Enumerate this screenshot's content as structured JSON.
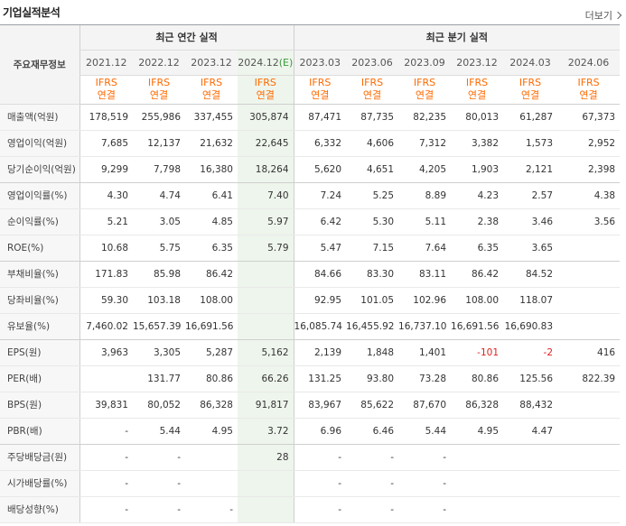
{
  "header": {
    "title": "기업실적분석",
    "more_label": "더보기"
  },
  "table": {
    "row_header_label": "주요재무정보",
    "group_annual": "최근 연간 실적",
    "group_quarterly": "최근 분기 실적",
    "periods": [
      "2021.12",
      "2022.12",
      "2023.12",
      "2024.12",
      "2023.03",
      "2023.06",
      "2023.09",
      "2023.12",
      "2024.03",
      "2024.06"
    ],
    "estimate_mark": "(E)",
    "standard_top": "IFRS",
    "standard_bottom": "연결",
    "rows": [
      {
        "label": "매출액(억원)",
        "values": [
          "178,519",
          "255,986",
          "337,455",
          "305,874",
          "87,471",
          "87,735",
          "82,235",
          "80,013",
          "61,287",
          "67,373"
        ]
      },
      {
        "label": "영업이익(억원)",
        "values": [
          "7,685",
          "12,137",
          "21,632",
          "22,645",
          "6,332",
          "4,606",
          "7,312",
          "3,382",
          "1,573",
          "2,952"
        ]
      },
      {
        "label": "당기순이익(억원)",
        "values": [
          "9,299",
          "7,798",
          "16,380",
          "18,264",
          "5,620",
          "4,651",
          "4,205",
          "1,903",
          "2,121",
          "2,398"
        ]
      },
      {
        "label": "영업이익률(%)",
        "values": [
          "4.30",
          "4.74",
          "6.41",
          "7.40",
          "7.24",
          "5.25",
          "8.89",
          "4.23",
          "2.57",
          "4.38"
        ]
      },
      {
        "label": "순이익률(%)",
        "values": [
          "5.21",
          "3.05",
          "4.85",
          "5.97",
          "6.42",
          "5.30",
          "5.11",
          "2.38",
          "3.46",
          "3.56"
        ]
      },
      {
        "label": "ROE(%)",
        "values": [
          "10.68",
          "5.75",
          "6.35",
          "5.79",
          "5.47",
          "7.15",
          "7.64",
          "6.35",
          "3.65",
          ""
        ]
      },
      {
        "label": "부채비율(%)",
        "values": [
          "171.83",
          "85.98",
          "86.42",
          "",
          "84.66",
          "83.30",
          "83.11",
          "86.42",
          "84.52",
          ""
        ]
      },
      {
        "label": "당좌비율(%)",
        "values": [
          "59.30",
          "103.18",
          "108.00",
          "",
          "92.95",
          "101.05",
          "102.96",
          "108.00",
          "118.07",
          ""
        ]
      },
      {
        "label": "유보율(%)",
        "values": [
          "7,460.02",
          "15,657.39",
          "16,691.56",
          "",
          "16,085.74",
          "16,455.92",
          "16,737.10",
          "16,691.56",
          "16,690.83",
          ""
        ]
      },
      {
        "label": "EPS(원)",
        "values": [
          "3,963",
          "3,305",
          "5,287",
          "5,162",
          "2,139",
          "1,848",
          "1,401",
          "-101",
          "-2",
          "416"
        ]
      },
      {
        "label": "PER(배)",
        "values": [
          "",
          "131.77",
          "80.86",
          "66.26",
          "131.25",
          "93.80",
          "73.28",
          "80.86",
          "125.56",
          "822.39"
        ]
      },
      {
        "label": "BPS(원)",
        "values": [
          "39,831",
          "80,052",
          "86,328",
          "91,817",
          "83,967",
          "85,622",
          "87,670",
          "86,328",
          "88,432",
          ""
        ]
      },
      {
        "label": "PBR(배)",
        "values": [
          "-",
          "5.44",
          "4.95",
          "3.72",
          "6.96",
          "6.46",
          "5.44",
          "4.95",
          "4.47",
          ""
        ]
      },
      {
        "label": "주당배당금(원)",
        "values": [
          "-",
          "-",
          "",
          "28",
          "-",
          "-",
          "-",
          "",
          "",
          ""
        ]
      },
      {
        "label": "시가배당률(%)",
        "values": [
          "-",
          "-",
          "",
          "",
          "-",
          "-",
          "-",
          "",
          "",
          ""
        ]
      },
      {
        "label": "배당성향(%)",
        "values": [
          "-",
          "-",
          "-",
          "",
          "-",
          "-",
          "-",
          "",
          "",
          ""
        ]
      }
    ]
  },
  "colors": {
    "standard": "#ff6a00",
    "negative": "#e02020",
    "estimate_bg": "#eef5ec"
  }
}
